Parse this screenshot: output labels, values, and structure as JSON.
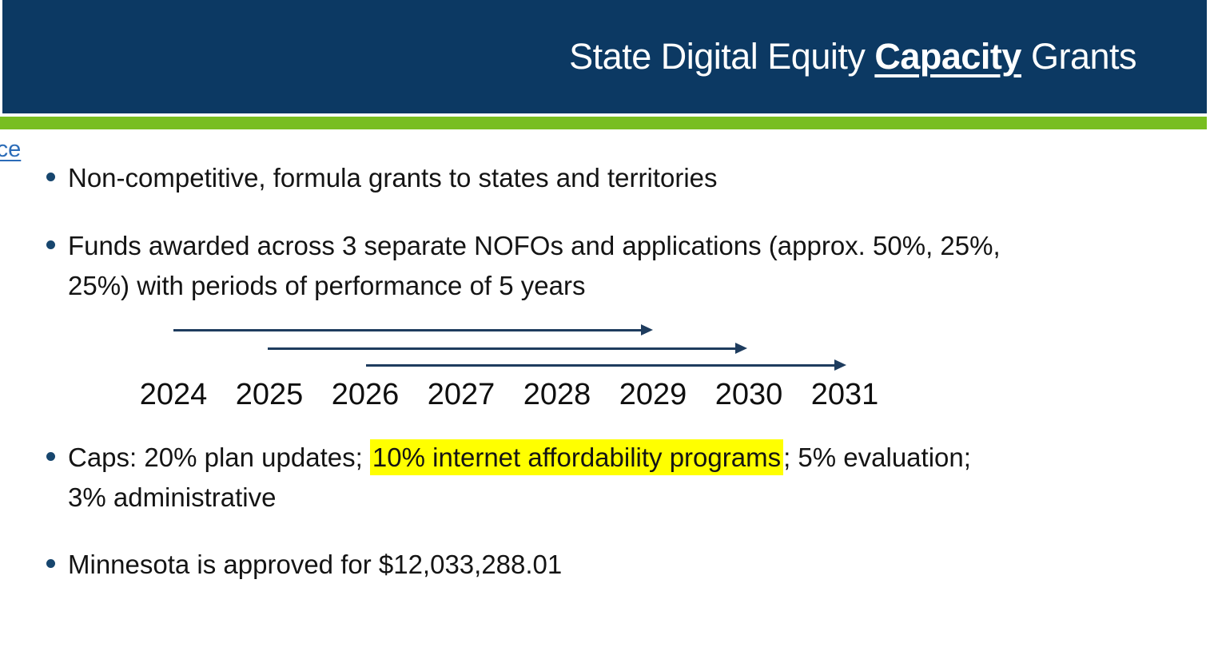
{
  "slide": {
    "title": {
      "prefix": "State Digital Equity ",
      "emphasis": "Capacity",
      "suffix": " Grants"
    },
    "edge_link_text": "rce",
    "bullets": {
      "b1": "Non-competitive, formula grants to states and territories",
      "b2_line1": "Funds awarded across 3 separate NOFOs and applications (approx. 50%, 25%,",
      "b2_line2": "25%) with periods of performance of 5 years",
      "b3_prefix": "Caps: 20% plan updates; ",
      "b3_highlight": "10% internet affordability programs",
      "b3_suffix_line1": "; 5% evaluation;",
      "b3_line2": "3% administrative",
      "b4": "Minnesota is approved for $12,033,288.01"
    },
    "timeline": {
      "years": [
        "2024",
        "2025",
        "2026",
        "2027",
        "2028",
        "2029",
        "2030",
        "2031"
      ],
      "arrows": [
        {
          "name": "period-1",
          "start_year": "2024",
          "end_year": "2029"
        },
        {
          "name": "period-2",
          "start_year": "2025",
          "end_year": "2030"
        },
        {
          "name": "period-3",
          "start_year": "2026",
          "end_year": "2031"
        }
      ]
    },
    "colors": {
      "header_navy": "#0c3963",
      "accent_green": "#78be21",
      "highlight_yellow": "#ffff00",
      "link_blue": "#2b6cb8",
      "bullet_navy": "#17466e",
      "arrow_navy": "#1e3c5e",
      "title_text": "#ffffff",
      "body_text": "#141414"
    }
  }
}
